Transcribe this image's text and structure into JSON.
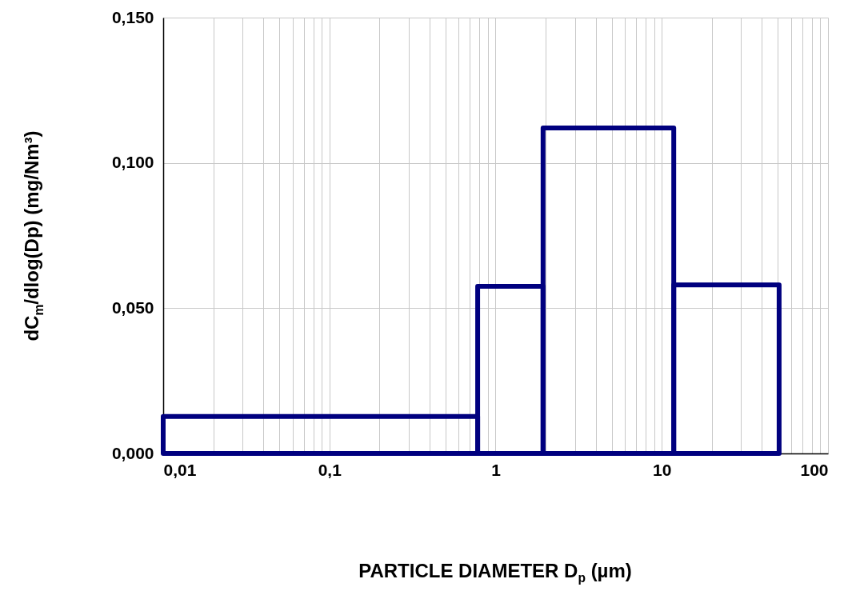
{
  "chart_data": {
    "type": "histogram",
    "xlabel": "PARTICLE DIAMETER D$_{p}$ (µm)",
    "ylabel": "dC$_{m}$/dlog(Dp) (mg/Nm³)",
    "bins": [
      0.01,
      0.78,
      1.93,
      11.8,
      50.8
    ],
    "values": [
      0.0127,
      0.0575,
      0.112,
      0.058
    ],
    "color": "#00007f",
    "log": "x",
    "grid": true,
    "xlim": [
      0.01,
      100
    ],
    "xticks": [
      {
        "value": 0.01,
        "label": "0,01"
      },
      {
        "value": 0.02,
        "label": null
      },
      {
        "value": 0.03,
        "label": null
      },
      {
        "value": 0.04,
        "label": null
      },
      {
        "value": 0.05,
        "label": null
      },
      {
        "value": 0.06,
        "label": null
      },
      {
        "value": 0.07,
        "label": null
      },
      {
        "value": 0.08,
        "label": null
      },
      {
        "value": 0.09,
        "label": null
      },
      {
        "value": 0.1,
        "label": "0,1"
      },
      {
        "value": 0.2,
        "label": null
      },
      {
        "value": 0.3,
        "label": null
      },
      {
        "value": 0.4,
        "label": null
      },
      {
        "value": 0.5,
        "label": null
      },
      {
        "value": 0.6,
        "label": null
      },
      {
        "value": 0.7,
        "label": null
      },
      {
        "value": 0.8,
        "label": null
      },
      {
        "value": 0.9,
        "label": null
      },
      1,
      {
        "value": 2,
        "label": null
      },
      {
        "value": 3,
        "label": null
      },
      {
        "value": 4,
        "label": null
      },
      {
        "value": 5,
        "label": null
      },
      {
        "value": 6,
        "label": null
      },
      {
        "value": 7,
        "label": null
      },
      {
        "value": 8,
        "label": null
      },
      {
        "value": 9,
        "label": null
      },
      10,
      {
        "value": 20,
        "label": null
      },
      {
        "value": 30,
        "label": null
      },
      {
        "value": 40,
        "label": null
      },
      {
        "value": 50,
        "label": null
      },
      {
        "value": 60,
        "label": null
      },
      {
        "value": 70,
        "label": null
      },
      {
        "value": 80,
        "label": null
      },
      {
        "value": 90,
        "label": null
      },
      100
    ],
    "ylim": [
      0,
      0.15
    ],
    "yticks": [
      {
        "value": 0,
        "label": "0,000"
      },
      {
        "value": 0.05,
        "label": "0,050"
      },
      {
        "value": 0.1,
        "label": "0,100"
      },
      {
        "value": 0.15,
        "label": "0,150"
      }
    ]
  }
}
